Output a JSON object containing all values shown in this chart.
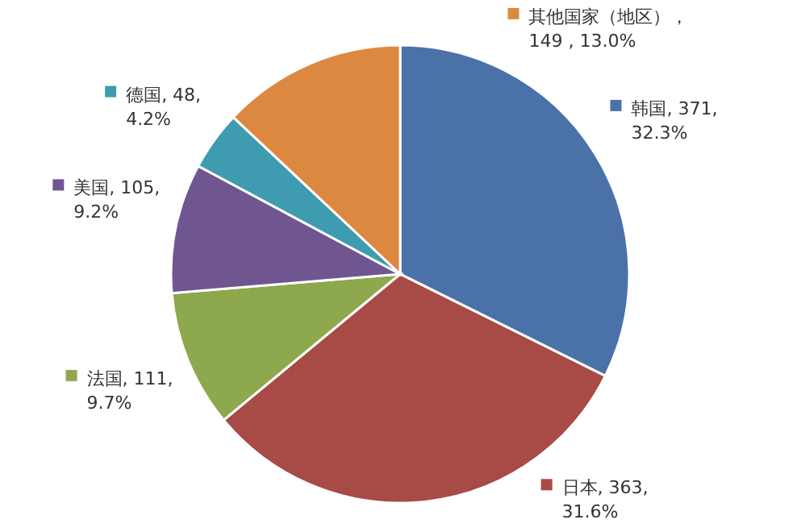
{
  "chart_data": {
    "type": "pie",
    "legend": "top left",
    "categories": [
      "韩国",
      "日本",
      "法国",
      "美国",
      "德国",
      "其他国家（地区）"
    ],
    "values": [
      371,
      363,
      111,
      105,
      48,
      149
    ],
    "colors": [
      "#4a72a8",
      "#a84a45",
      "#8ea84e",
      "#6f5691",
      "#3e9bb0",
      "#dd8840"
    ],
    "value_labels": [
      ", 371,\n32.3%",
      ", 363,\n31.6%",
      ", 111,\n9.7%",
      ", 105,\n9.2%",
      ", 48,\n4.2%",
      "，\n149 , 13.0%"
    ]
  }
}
